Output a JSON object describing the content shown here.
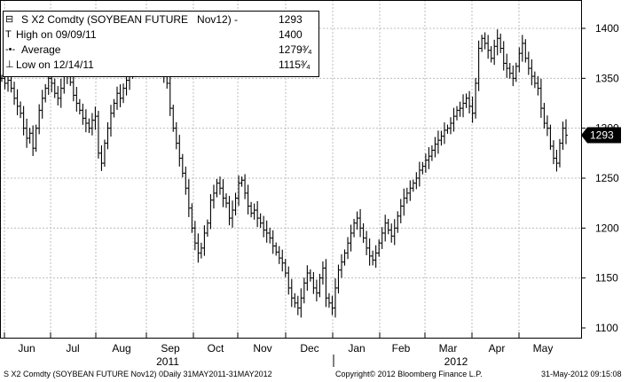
{
  "legend": {
    "title": "S X2 Comdty (SOYBEAN FUTURE   Nov12) -",
    "title_value": "1293",
    "high_label": "High on 09/09/11",
    "high_value": "1400",
    "avg_label": "Average",
    "avg_value": "1279³⁄₄",
    "low_label": "Low on 12/14/11",
    "low_value": "1115³⁄₄"
  },
  "last_price_label": "1293",
  "footer": {
    "left": "S X2 Comdty (SOYBEAN FUTURE   Nov12) 0Daily 31MAY2011-31MAY2012",
    "center": "Copyright© 2012 Bloomberg Finance L.P.",
    "right": "31-May-2012 09:15:08"
  },
  "colors": {
    "background": "#ffffff",
    "bars": "#000000",
    "grid": "#bdbdbd",
    "accent": "#000000"
  },
  "chart_data": {
    "type": "ohlc",
    "title": "S X2 Comdty (SOYBEAN FUTURE   Nov12)",
    "ylim": [
      1100,
      1420
    ],
    "yticks": [
      1100,
      1150,
      1200,
      1250,
      1300,
      1350,
      1400
    ],
    "y_axis_position": "right",
    "grid": true,
    "months": [
      "Jun",
      "Jul",
      "Aug",
      "Sep",
      "Oct",
      "Nov",
      "Dec",
      "Jan",
      "Feb",
      "Mar",
      "Apr",
      "May"
    ],
    "years": [
      "2011",
      "2012"
    ],
    "last_price": 1293,
    "high": {
      "date": "09/09/11",
      "value": 1400
    },
    "low": {
      "date": "12/14/11",
      "value": 1115.75
    },
    "average": 1279.75,
    "series": [
      {
        "name": "S X2 Comdty",
        "closes": [
          1350,
          1345,
          1348,
          1340,
          1330,
          1322,
          1315,
          1300,
          1290,
          1295,
          1280,
          1300,
          1318,
          1330,
          1340,
          1350,
          1345,
          1335,
          1330,
          1340,
          1352,
          1360,
          1346,
          1333,
          1325,
          1318,
          1310,
          1305,
          1300,
          1308,
          1312,
          1275,
          1265,
          1285,
          1300,
          1315,
          1325,
          1335,
          1330,
          1340,
          1348,
          1355,
          1360,
          1372,
          1390,
          1393,
          1385,
          1370,
          1375,
          1395,
          1380,
          1365,
          1355,
          1345,
          1320,
          1300,
          1285,
          1270,
          1255,
          1240,
          1220,
          1200,
          1185,
          1175,
          1180,
          1195,
          1205,
          1228,
          1235,
          1245,
          1240,
          1230,
          1225,
          1210,
          1218,
          1230,
          1245,
          1248,
          1235,
          1222,
          1215,
          1218,
          1210,
          1205,
          1198,
          1195,
          1190,
          1182,
          1176,
          1170,
          1165,
          1155,
          1140,
          1130,
          1125,
          1120,
          1130,
          1145,
          1155,
          1150,
          1140,
          1135,
          1150,
          1160,
          1130,
          1125,
          1120,
          1140,
          1158,
          1166,
          1175,
          1185,
          1195,
          1205,
          1210,
          1200,
          1190,
          1180,
          1172,
          1168,
          1175,
          1185,
          1195,
          1205,
          1198,
          1192,
          1200,
          1212,
          1222,
          1230,
          1235,
          1240,
          1245,
          1250,
          1258,
          1262,
          1268,
          1272,
          1278,
          1284,
          1288,
          1292,
          1298,
          1300,
          1305,
          1312,
          1318,
          1320,
          1325,
          1330,
          1322,
          1315,
          1345,
          1380,
          1390,
          1385,
          1378,
          1370,
          1382,
          1390,
          1380,
          1365,
          1360,
          1355,
          1350,
          1362,
          1375,
          1385,
          1370,
          1360,
          1352,
          1345,
          1340,
          1320,
          1305,
          1300,
          1282,
          1270,
          1265,
          1285,
          1300,
          1293
        ]
      }
    ]
  }
}
